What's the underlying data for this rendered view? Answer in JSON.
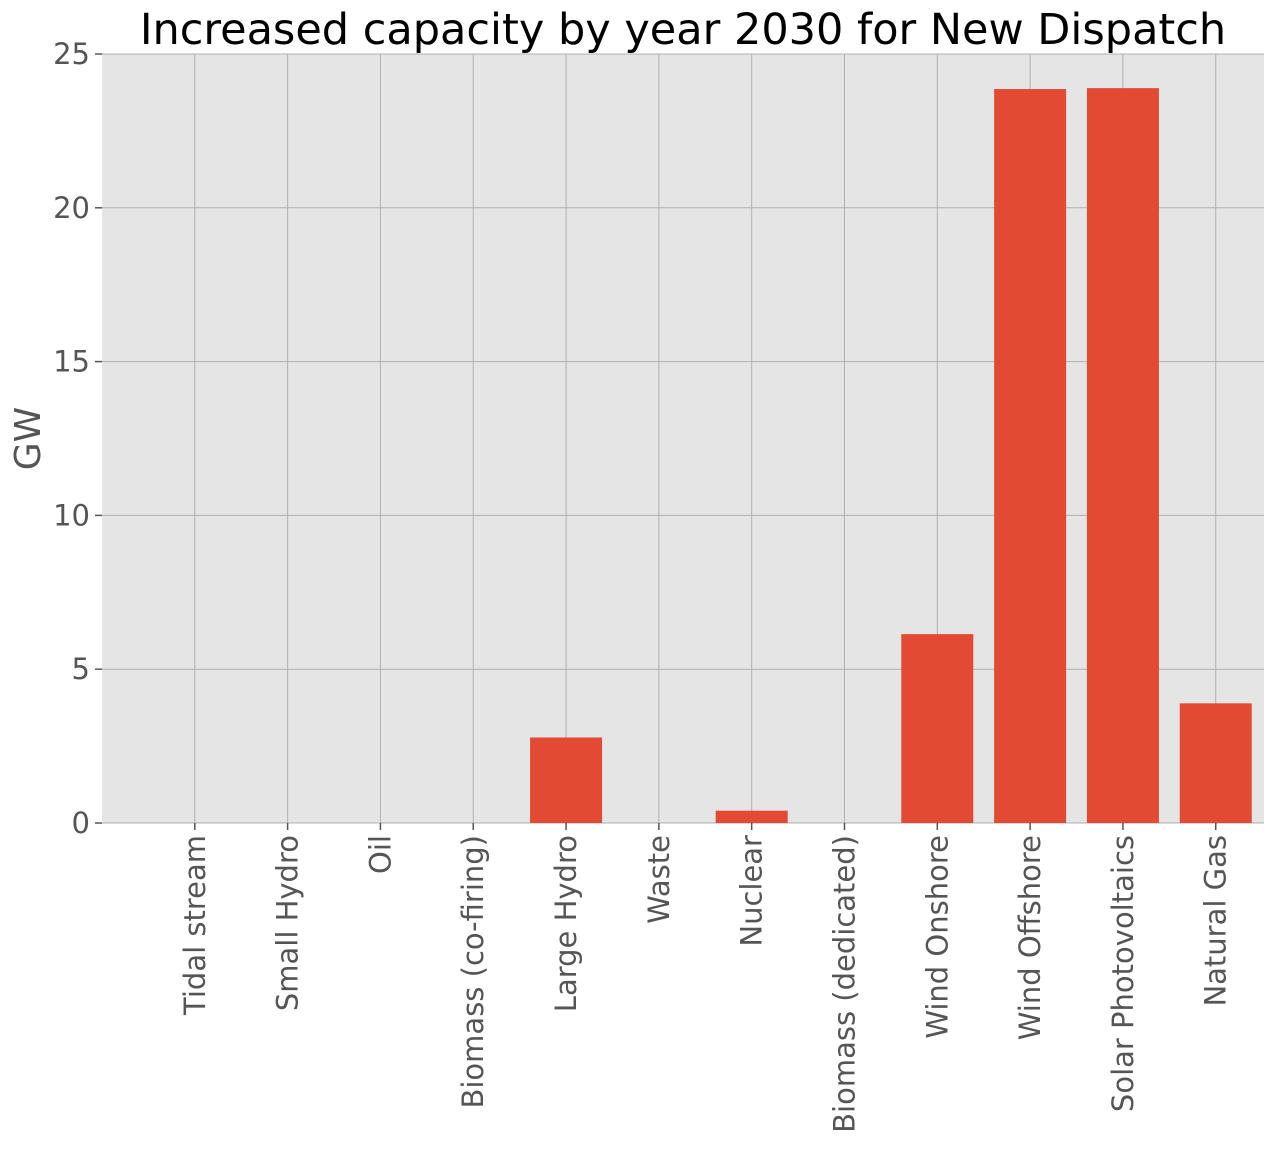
{
  "chart_data": {
    "type": "bar",
    "title": "Increased capacity by year 2030 for New Dispatch",
    "xlabel": "",
    "ylabel": "GW",
    "ylim": [
      0,
      25
    ],
    "yticks": [
      0,
      5,
      10,
      15,
      20,
      25
    ],
    "categories": [
      "Tidal stream",
      "Small Hydro",
      "Oil",
      "Biomass (co-firing)",
      "Large Hydro",
      "Waste",
      "Nuclear",
      "Biomass (dedicated)",
      "Wind Onshore",
      "Wind Offshore",
      "Solar Photovoltaics",
      "Natural Gas"
    ],
    "values": [
      0,
      0,
      0,
      0,
      2.78,
      0,
      0.4,
      0,
      6.14,
      23.86,
      23.89,
      3.89
    ],
    "grid": true,
    "colors": {
      "bar": "#E24A33",
      "plot_background": "#E5E5E5",
      "grid": "#B0B0B0",
      "text": "#555555"
    }
  }
}
